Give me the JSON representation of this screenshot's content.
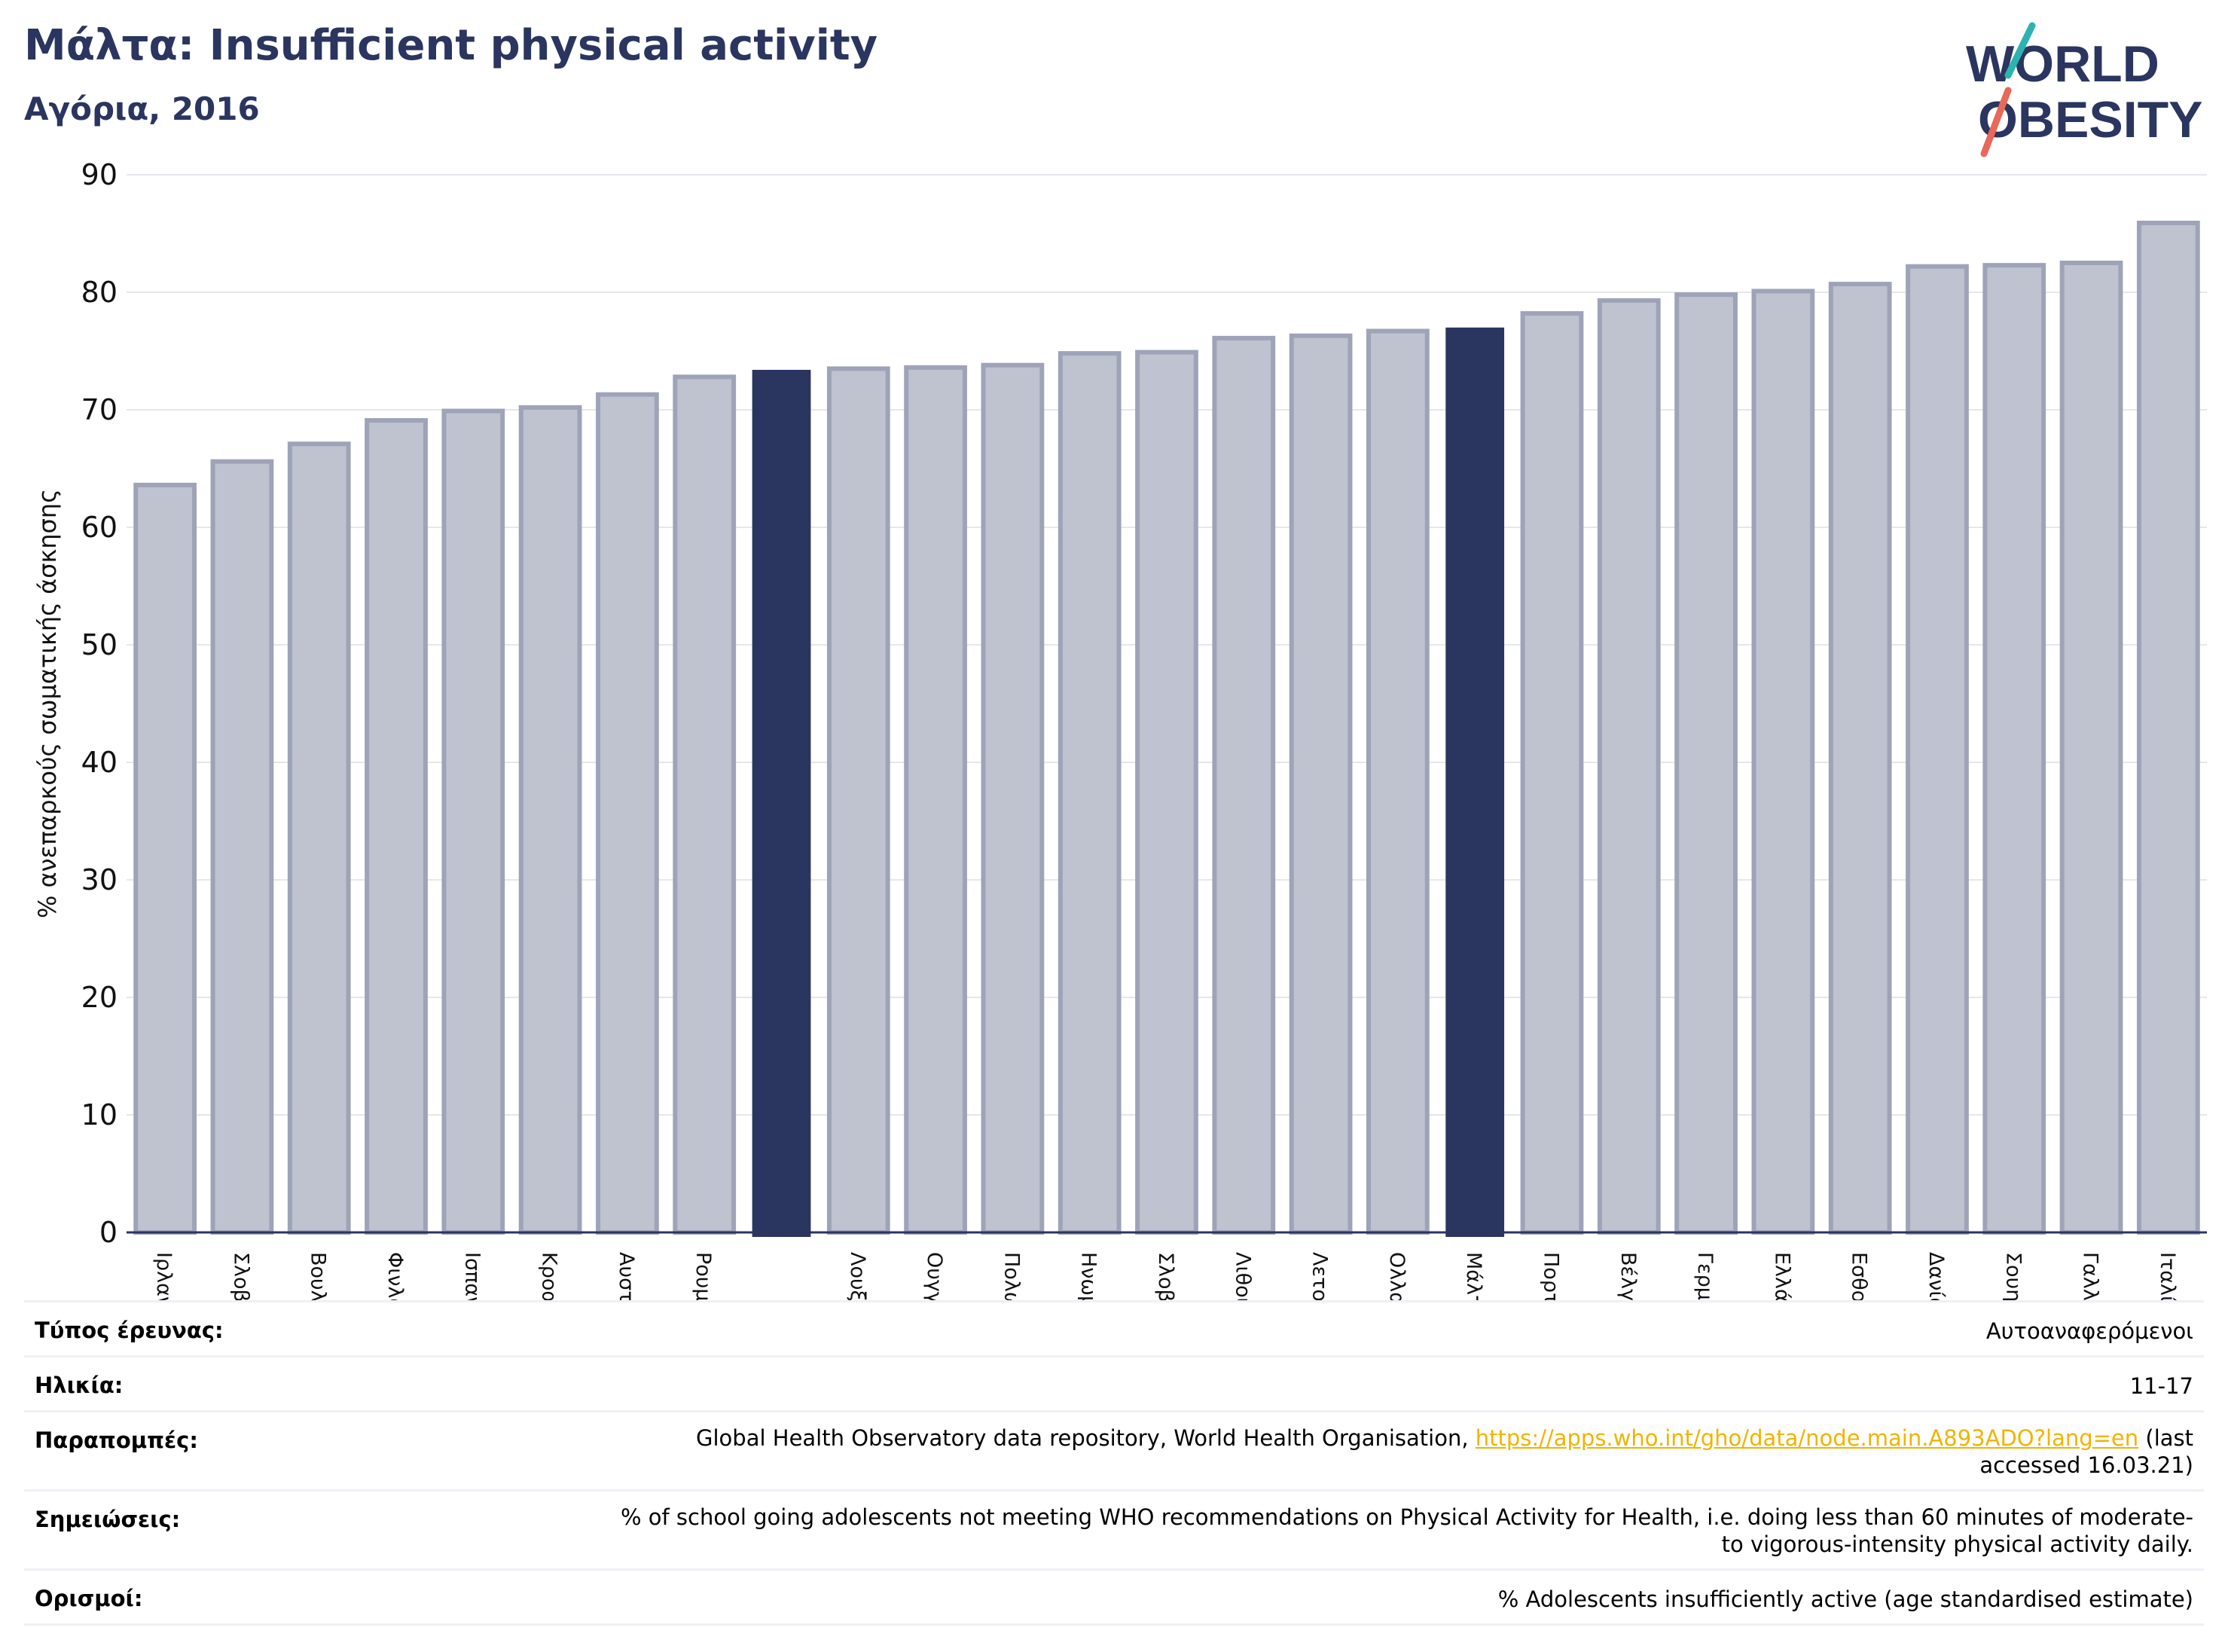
{
  "header": {
    "title": "Μάλτα: Insufficient physical activity",
    "subtitle": "Αγόρια, 2016"
  },
  "logo": {
    "line1": "WORLD",
    "line2": "OBESITY"
  },
  "colors": {
    "bar_default": "#bfc2cf",
    "bar_default_edge": "#9ea3b8",
    "bar_highlight": "#2a3560",
    "title": "#2a3560",
    "link": "#f0b400",
    "logo_teal": "#2bb3b1",
    "logo_coral": "#e8685a"
  },
  "chart_data": {
    "type": "bar",
    "ylabel": "% ανεπαρκούς σωματικής άσκησης",
    "xlabel": "",
    "ylim": [
      0,
      90
    ],
    "yticks": [
      0,
      10,
      20,
      30,
      40,
      50,
      60,
      70,
      80,
      90
    ],
    "grid": true,
    "categories": [
      "Ιρλανδία",
      "Σλοβακία",
      "Βουλγαρία",
      "Φινλανδία",
      "Ισπανία",
      "Κροατία",
      "Αυστρία",
      "Ρουμανία",
      "",
      "Λουξεμβούργο",
      "Ουγγαρία",
      "Πολωνία",
      "Ηνωμένο Βασίλειο",
      "Σλοβενία",
      "Λιθουανία",
      "Λετονία",
      "Ολλανδία",
      "Μάλτα",
      "Πορτογαλία",
      "Βέλγιο",
      "Γερμανία",
      "Ελλάδα",
      "Εσθονία",
      "Δανία",
      "Σουηδία",
      "Γαλλία",
      "Ιταλία"
    ],
    "values": [
      63.6,
      65.6,
      67.1,
      69.1,
      69.9,
      70.2,
      71.3,
      72.8,
      73.4,
      73.5,
      73.6,
      73.8,
      74.8,
      74.9,
      76.1,
      76.3,
      76.7,
      77.0,
      78.2,
      79.3,
      79.8,
      80.1,
      80.7,
      82.2,
      82.3,
      82.5,
      85.9
    ],
    "highlight": [
      8,
      17
    ]
  },
  "info": {
    "rows": [
      {
        "label": "Τύπος έρευνας:",
        "value": "Αυτοαναφερόμενοι"
      },
      {
        "label": "Ηλικία:",
        "value": "11-17"
      },
      {
        "label": "Παραπομπές:",
        "value_pre": "Global Health Observatory data repository, World Health Organisation, ",
        "link": "https://apps.who.int/gho/data/node.main.A893ADO?lang=en",
        "value_post": " (last accessed 16.03.21)"
      },
      {
        "label": "Σημειώσεις:",
        "value": "% of school going adolescents not meeting WHO recommendations on Physical Activity for Health, i.e. doing less than 60 minutes of moderate- to vigorous-intensity physical activity daily."
      },
      {
        "label": "Ορισμοί:",
        "value": "% Adolescents insufficiently active (age standardised estimate)"
      }
    ]
  }
}
